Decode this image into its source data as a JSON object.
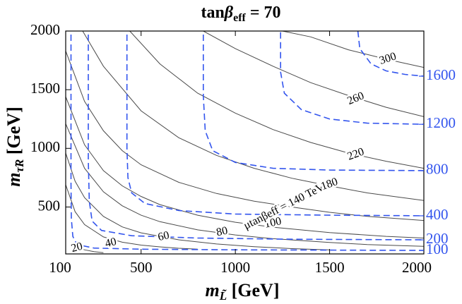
{
  "chart_data": {
    "type": "line",
    "title": {
      "base": "tan",
      "beta": "β",
      "sub": "eff",
      "suffix": " = 70"
    },
    "xlabel": {
      "base": "m",
      "sub": "L̃",
      "unit": " [GeV]"
    },
    "ylabel": {
      "base": "m",
      "sub": "τ̃R",
      "unit": " [GeV]"
    },
    "xlim": [
      100,
      2000
    ],
    "ylim": [
      100,
      2000
    ],
    "xticks": [
      100,
      500,
      1000,
      1500,
      2000
    ],
    "xtick_labels": [
      "100",
      "500",
      "1000",
      "1500",
      "2000"
    ],
    "yticks": [
      500,
      1000,
      1500,
      2000
    ],
    "ytick_labels": [
      "500",
      "1000",
      "1500",
      "2000"
    ],
    "solid_contours": {
      "description": "μ tanβ_eff contours [TeV]",
      "color": "#4a4a4a",
      "levels": [
        {
          "label": "20",
          "value": 20,
          "points": [
            [
              125,
              185
            ],
            [
              150,
              160
            ],
            [
              200,
              135
            ],
            [
              250,
              120
            ],
            [
              300,
              110
            ]
          ]
        },
        {
          "label": "40",
          "value": 40,
          "points": [
            [
              100,
              690
            ],
            [
              150,
              460
            ],
            [
              200,
              350
            ],
            [
              300,
              245
            ],
            [
              400,
              200
            ],
            [
              500,
              175
            ],
            [
              600,
              160
            ],
            [
              700,
              148
            ],
            [
              800,
              140
            ]
          ]
        },
        {
          "label": "60",
          "value": 60,
          "points": [
            [
              100,
              960
            ],
            [
              150,
              720
            ],
            [
              200,
              580
            ],
            [
              300,
              420
            ],
            [
              400,
              330
            ],
            [
              500,
              280
            ],
            [
              700,
              220
            ],
            [
              900,
              185
            ],
            [
              1100,
              162
            ],
            [
              1300,
              145
            ],
            [
              1500,
              135
            ]
          ]
        },
        {
          "label": "80",
          "value": 80,
          "points": [
            [
              100,
              1210
            ],
            [
              200,
              830
            ],
            [
              300,
              630
            ],
            [
              400,
              510
            ],
            [
              500,
              430
            ],
            [
              600,
              375
            ],
            [
              800,
              305
            ],
            [
              1000,
              262
            ],
            [
              1200,
              230
            ],
            [
              1500,
              198
            ],
            [
              1700,
              180
            ],
            [
              2000,
              165
            ]
          ]
        },
        {
          "label": "100",
          "value": 100,
          "points": [
            [
              100,
              1440
            ],
            [
              200,
              1030
            ],
            [
              300,
              810
            ],
            [
              400,
              680
            ],
            [
              500,
              590
            ],
            [
              600,
              520
            ],
            [
              800,
              430
            ],
            [
              1000,
              370
            ],
            [
              1200,
              328
            ],
            [
              1500,
              282
            ],
            [
              1800,
              250
            ],
            [
              2000,
              235
            ]
          ]
        },
        {
          "label": "μtanβeff = 140 TeV",
          "value": 140,
          "points": [
            [
              100,
              1830
            ],
            [
              200,
              1400
            ],
            [
              300,
              1150
            ],
            [
              400,
              980
            ],
            [
              500,
              860
            ],
            [
              700,
              710
            ],
            [
              900,
              615
            ],
            [
              1100,
              550
            ],
            [
              1300,
              500
            ],
            [
              1500,
              455
            ],
            [
              1700,
              420
            ],
            [
              2000,
              385
            ]
          ]
        },
        {
          "label": "180",
          "value": 180,
          "points": [
            [
              190,
              2000
            ],
            [
              300,
              1700
            ],
            [
              500,
              1320
            ],
            [
              700,
              1090
            ],
            [
              900,
              940
            ],
            [
              1100,
              830
            ],
            [
              1300,
              745
            ],
            [
              1500,
              680
            ],
            [
              1700,
              620
            ],
            [
              2000,
              555
            ]
          ]
        },
        {
          "label": "220",
          "value": 220,
          "points": [
            [
              440,
              2000
            ],
            [
              600,
              1720
            ],
            [
              800,
              1470
            ],
            [
              1000,
              1300
            ],
            [
              1200,
              1160
            ],
            [
              1400,
              1050
            ],
            [
              1600,
              960
            ],
            [
              1800,
              890
            ],
            [
              2000,
              830
            ]
          ]
        },
        {
          "label": "260",
          "value": 260,
          "points": [
            [
              830,
              2000
            ],
            [
              1000,
              1850
            ],
            [
              1200,
              1700
            ],
            [
              1400,
              1560
            ],
            [
              1600,
              1450
            ],
            [
              1800,
              1350
            ],
            [
              2000,
              1270
            ]
          ]
        },
        {
          "label": "300",
          "value": 300,
          "points": [
            [
              1250,
              2000
            ],
            [
              1400,
              1950
            ],
            [
              1600,
              1840
            ],
            [
              1800,
              1760
            ],
            [
              2000,
              1690
            ]
          ]
        }
      ]
    },
    "dashed_contours": {
      "description": "right-axis contour values [GeV]",
      "color": "#3355ee",
      "levels": [
        {
          "label": "100",
          "value": 100,
          "points": [
            [
              128,
              1970
            ],
            [
              128,
              700
            ],
            [
              130,
              400
            ],
            [
              138,
              250
            ],
            [
              160,
              180
            ],
            [
              250,
              150
            ],
            [
              500,
              140
            ],
            [
              1000,
              135
            ],
            [
              2000,
              130
            ]
          ]
        },
        {
          "label": "200",
          "value": 200,
          "points": [
            [
              220,
              1970
            ],
            [
              220,
              900
            ],
            [
              225,
              550
            ],
            [
              240,
              380
            ],
            [
              290,
              300
            ],
            [
              450,
              255
            ],
            [
              800,
              235
            ],
            [
              1300,
              225
            ],
            [
              2000,
              220
            ]
          ]
        },
        {
          "label": "400",
          "value": 400,
          "points": [
            [
              425,
              1970
            ],
            [
              425,
              1000
            ],
            [
              430,
              750
            ],
            [
              450,
              620
            ],
            [
              520,
              530
            ],
            [
              700,
              470
            ],
            [
              1000,
              440
            ],
            [
              1500,
              430
            ],
            [
              2000,
              425
            ]
          ]
        },
        {
          "label": "800",
          "value": 800,
          "points": [
            [
              830,
              1970
            ],
            [
              830,
              1450
            ],
            [
              840,
              1150
            ],
            [
              880,
              980
            ],
            [
              1000,
              880
            ],
            [
              1200,
              830
            ],
            [
              1500,
              815
            ],
            [
              2000,
              810
            ]
          ]
        },
        {
          "label": "1200",
          "value": 1200,
          "points": [
            [
              1240,
              1990
            ],
            [
              1240,
              1650
            ],
            [
              1260,
              1470
            ],
            [
              1350,
              1330
            ],
            [
              1500,
              1250
            ],
            [
              1700,
              1215
            ],
            [
              2000,
              1205
            ]
          ]
        },
        {
          "label": "1600",
          "value": 1600,
          "points": [
            [
              1650,
              2000
            ],
            [
              1660,
              1850
            ],
            [
              1720,
              1720
            ],
            [
              1800,
              1660
            ],
            [
              1900,
              1630
            ],
            [
              2000,
              1615
            ]
          ]
        }
      ]
    },
    "right_ticks": [
      {
        "label": "1600",
        "value": 1615
      },
      {
        "label": "1200",
        "value": 1205
      },
      {
        "label": "800",
        "value": 810
      },
      {
        "label": "400",
        "value": 425
      },
      {
        "label": "200",
        "value": 220
      },
      {
        "label": "100",
        "value": 130
      }
    ],
    "contour_labels": [
      {
        "text": "20",
        "x": 160,
        "y": 150,
        "angle": -15
      },
      {
        "text": "40",
        "x": 340,
        "y": 190,
        "angle": -14
      },
      {
        "text": "60",
        "x": 620,
        "y": 245,
        "angle": -13
      },
      {
        "text": "80",
        "x": 930,
        "y": 285,
        "angle": -12
      },
      {
        "text": "100",
        "x": 1200,
        "y": 360,
        "angle": -12
      },
      {
        "text": "μtanβeff = 140 TeV",
        "x": 1260,
        "y": 500,
        "angle": -27
      },
      {
        "text": "180",
        "x": 1500,
        "y": 690,
        "angle": -20
      },
      {
        "text": "220",
        "x": 1640,
        "y": 945,
        "angle": -20
      },
      {
        "text": "260",
        "x": 1640,
        "y": 1420,
        "angle": -22
      },
      {
        "text": "300",
        "x": 1810,
        "y": 1760,
        "angle": -18
      }
    ]
  }
}
